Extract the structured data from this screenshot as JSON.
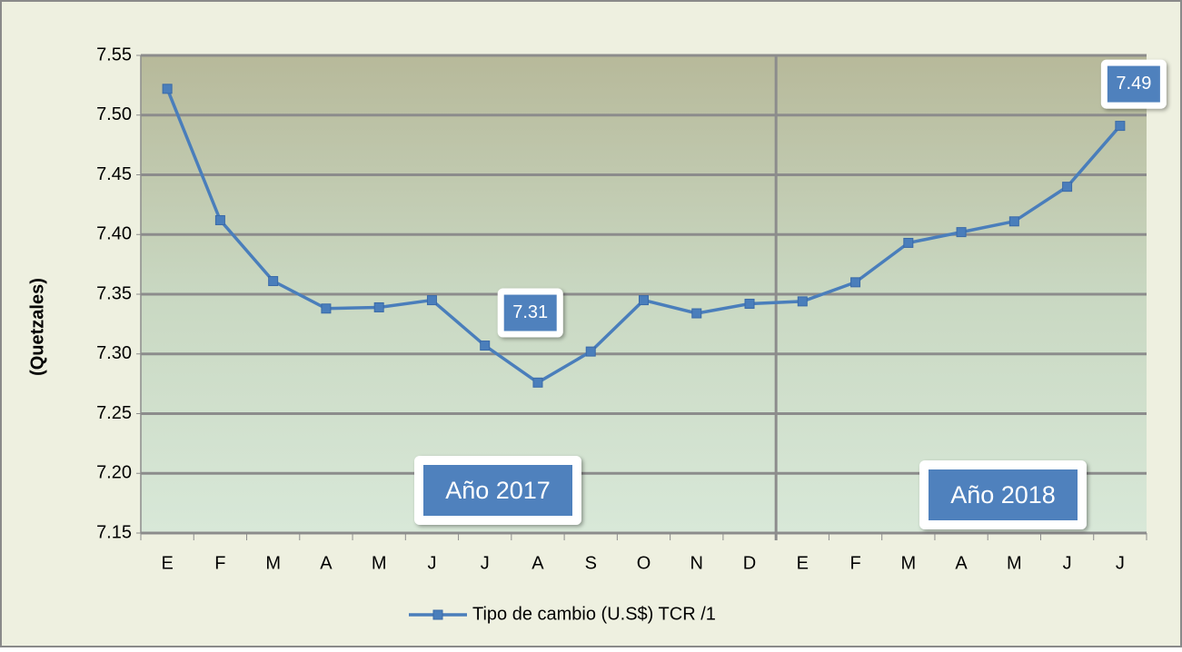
{
  "chart_data": {
    "type": "line",
    "y_label": "(Quetzales)",
    "categories": [
      "E",
      "F",
      "M",
      "A",
      "M",
      "J",
      "J",
      "A",
      "S",
      "O",
      "N",
      "D",
      "E",
      "F",
      "M",
      "A",
      "M",
      "J",
      "J"
    ],
    "series": [
      {
        "name": "Tipo de cambio (U.S$) TCR /1",
        "color": "#4a7ebb",
        "values": [
          7.522,
          7.412,
          7.361,
          7.338,
          7.339,
          7.345,
          7.307,
          7.276,
          7.302,
          7.345,
          7.334,
          7.342,
          7.344,
          7.36,
          7.393,
          7.402,
          7.411,
          7.44,
          7.491
        ],
        "value_labels": [
          null,
          null,
          null,
          null,
          null,
          null,
          "7.31",
          null,
          null,
          null,
          null,
          null,
          null,
          null,
          null,
          null,
          null,
          null,
          "7.49"
        ]
      }
    ],
    "annotations": [
      "Año 2017",
      "Año 2018"
    ],
    "ylim": [
      7.15,
      7.55
    ],
    "yticks": [
      7.15,
      {
        "value": 7.2,
        "label": "7.20"
      },
      7.25,
      {
        "value": 7.3,
        "label": "7.30"
      },
      7.35,
      {
        "value": 7.4,
        "label": "7.40"
      },
      7.45,
      {
        "value": 7.5,
        "label": "7.50"
      },
      7.55
    ],
    "grid": true,
    "legend": "bottom"
  }
}
